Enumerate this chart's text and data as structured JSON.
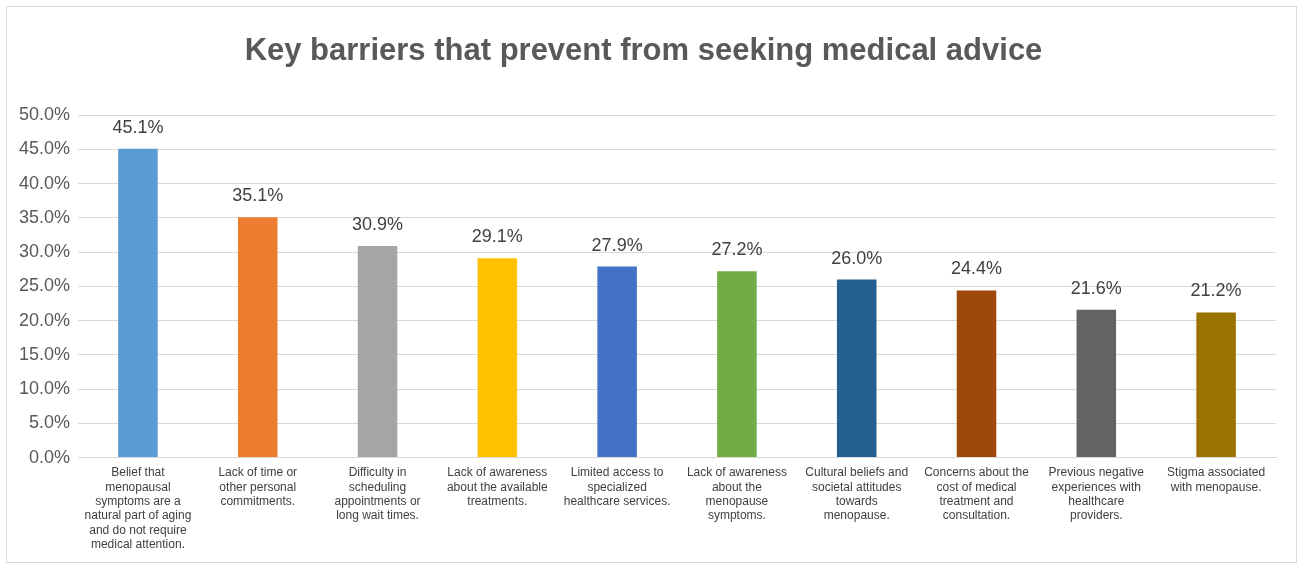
{
  "chart_data": {
    "type": "bar",
    "title": "Key barriers that prevent from seeking medical advice",
    "categories": [
      "Belief that menopausal symptoms are a natural part of aging and do not require medical attention.",
      "Lack of time or other personal commitments.",
      "Difficulty in scheduling appointments or long wait times.",
      "Lack of awareness about the available treatments.",
      "Limited access to specialized healthcare services.",
      "Lack of awareness about the menopause symptoms.",
      "Cultural beliefs and societal attitudes towards menopause.",
      "Concerns about the cost of medical treatment and consultation.",
      "Previous negative experiences with healthcare providers.",
      "Stigma associated with menopause."
    ],
    "values": [
      45.1,
      35.1,
      30.9,
      29.1,
      27.9,
      27.2,
      26.0,
      24.4,
      21.6,
      21.2
    ],
    "value_labels": [
      "45.1%",
      "35.1%",
      "30.9%",
      "29.1%",
      "27.9%",
      "27.2%",
      "26.0%",
      "24.4%",
      "21.6%",
      "21.2%"
    ],
    "colors": [
      "#5b9bd5",
      "#ed7d31",
      "#a5a5a5",
      "#ffc000",
      "#4472c4",
      "#70ad47",
      "#255e91",
      "#9e480e",
      "#636363",
      "#997300"
    ],
    "ylim": [
      0,
      50
    ],
    "yticks": [
      {
        "value": 0,
        "label": "0.0%"
      },
      {
        "value": 5,
        "label": "5.0%"
      },
      {
        "value": 10,
        "label": "10.0%"
      },
      {
        "value": 15,
        "label": "15.0%"
      },
      {
        "value": 20,
        "label": "20.0%"
      },
      {
        "value": 25,
        "label": "25.0%"
      },
      {
        "value": 30,
        "label": "30.0%"
      },
      {
        "value": 35,
        "label": "35.0%"
      },
      {
        "value": 40,
        "label": "40.0%"
      },
      {
        "value": 45,
        "label": "45.0%"
      },
      {
        "value": 50,
        "label": "50.0%"
      }
    ],
    "grid": "y",
    "legend": false
  }
}
